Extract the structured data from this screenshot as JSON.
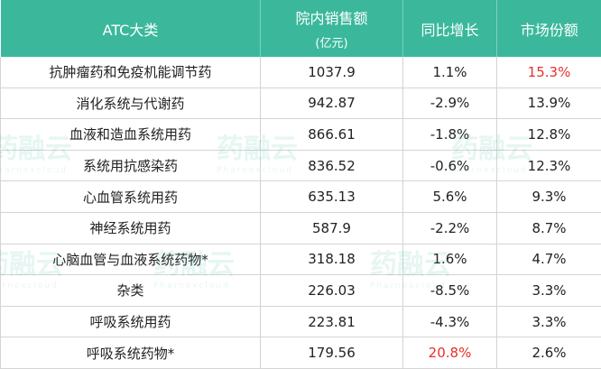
{
  "table": {
    "header": [
      "ATC大类",
      "院内销售额",
      "同比增长",
      "市场份额"
    ],
    "header_unit": "(亿元)",
    "rows": [
      [
        "抗肿瘤药和免疫机能调节药",
        "1037.9",
        "1.1%",
        "15.3%"
      ],
      [
        "消化系统与代谢药",
        "942.87",
        "-2.9%",
        "13.9%"
      ],
      [
        "血液和造血系统用药",
        "866.61",
        "-1.8%",
        "12.8%"
      ],
      [
        "系统用抗感染药",
        "836.52",
        "-0.6%",
        "12.3%"
      ],
      [
        "心血管系统用药",
        "635.13",
        "5.6%",
        "9.3%"
      ],
      [
        "神经系统用药",
        "587.9",
        "-2.2%",
        "8.7%"
      ],
      [
        "心脑血管与血液系统药物*",
        "318.18",
        "1.6%",
        "4.7%"
      ],
      [
        "杂类",
        "226.03",
        "-8.5%",
        "3.3%"
      ],
      [
        "呼吸系统用药",
        "223.81",
        "-4.3%",
        "3.3%"
      ],
      [
        "呼吸系统药物*",
        "179.56",
        "20.8%",
        "2.6%"
      ]
    ]
  },
  "watermark": {
    "text": "药融云",
    "subtext": "Pharnexcloud"
  }
}
